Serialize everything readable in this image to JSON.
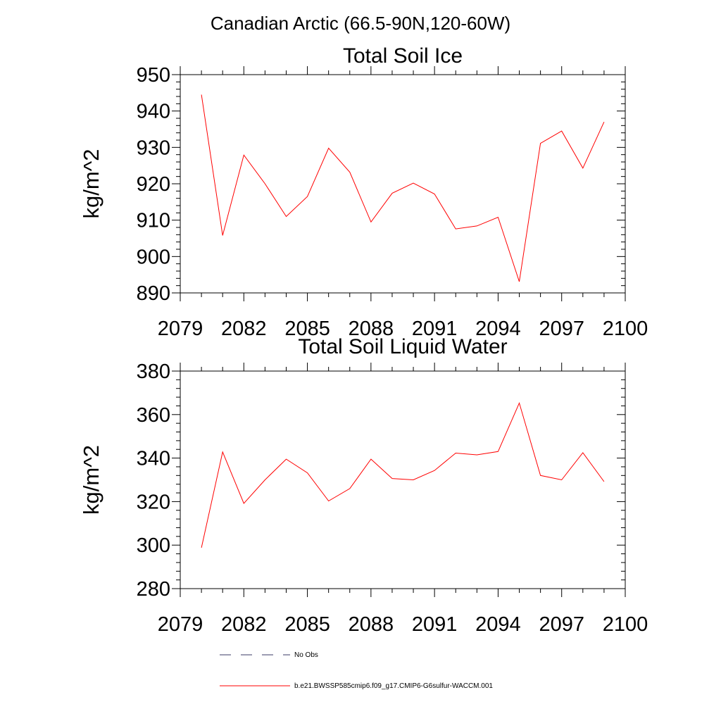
{
  "figure": {
    "title": "Canadian Arctic (66.5-90N,120-60W)"
  },
  "chart_data": [
    {
      "type": "line",
      "title": "Total Soil Ice",
      "xlabel": "",
      "ylabel": "kg/m^2",
      "xlim": [
        2079,
        2100
      ],
      "ylim": [
        890,
        950
      ],
      "xticks": [
        "2079",
        "2082",
        "2085",
        "2088",
        "2091",
        "2094",
        "2097",
        "2100"
      ],
      "yticks": [
        "890",
        "900",
        "910",
        "920",
        "930",
        "940",
        "950"
      ],
      "x": [
        2080,
        2081,
        2082,
        2083,
        2084,
        2085,
        2086,
        2087,
        2088,
        2089,
        2090,
        2091,
        2092,
        2093,
        2094,
        2095,
        2096,
        2097,
        2098,
        2099
      ],
      "series": [
        {
          "name": "b.e21.BWSSP585cmip6.f09_g17.CMIP6-G6sulfur-WACCM.001",
          "color": "#ff0000",
          "values": [
            944.5,
            905.8,
            927.9,
            920.0,
            911.0,
            916.5,
            929.8,
            923.2,
            909.5,
            917.4,
            920.2,
            917.2,
            907.6,
            908.4,
            910.8,
            893.1,
            931.1,
            934.5,
            924.3,
            937.0
          ]
        }
      ]
    },
    {
      "type": "line",
      "title": "Total Soil Liquid Water",
      "xlabel": "",
      "ylabel": "kg/m^2",
      "xlim": [
        2079,
        2100
      ],
      "ylim": [
        280,
        380
      ],
      "xticks": [
        "2079",
        "2082",
        "2085",
        "2088",
        "2091",
        "2094",
        "2097",
        "2100"
      ],
      "yticks": [
        "280",
        "300",
        "320",
        "340",
        "360",
        "380"
      ],
      "x": [
        2080,
        2081,
        2082,
        2083,
        2084,
        2085,
        2086,
        2087,
        2088,
        2089,
        2090,
        2091,
        2092,
        2093,
        2094,
        2095,
        2096,
        2097,
        2098,
        2099
      ],
      "series": [
        {
          "name": "b.e21.BWSSP585cmip6.f09_g17.CMIP6-G6sulfur-WACCM.001",
          "color": "#ff0000",
          "values": [
            298.8,
            342.8,
            319.2,
            330.0,
            339.5,
            333.2,
            320.3,
            326.0,
            339.5,
            330.6,
            330.0,
            334.3,
            342.3,
            341.5,
            343.0,
            365.3,
            332.0,
            330.0,
            342.5,
            329.2
          ]
        }
      ]
    }
  ],
  "legend": {
    "items": [
      {
        "label": "No Obs",
        "style": "dashed",
        "color": "#3a3a66"
      },
      {
        "label": "b.e21.BWSSP585cmip6.f09_g17.CMIP6-G6sulfur-WACCM.001",
        "style": "solid",
        "color": "#ff0000"
      }
    ]
  }
}
